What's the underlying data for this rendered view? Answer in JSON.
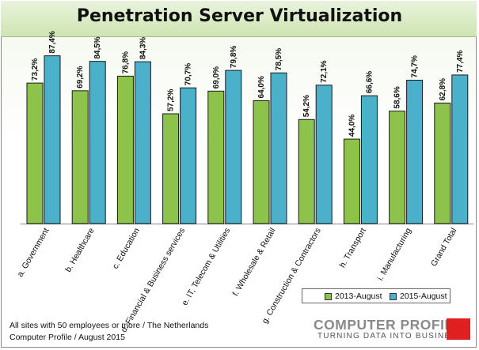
{
  "chart_data": {
    "type": "bar",
    "title": "Penetration Server Virtualization",
    "categories": [
      "a. Government",
      "b. Healthcare",
      "c. Education",
      "d. Financial & Business services",
      "e. IT, Telecom & Utilities",
      "f. Wholesale & Retail",
      "g. Construction & Contractors",
      "h. Transport",
      "i. Manufacturing",
      "Grand Total"
    ],
    "series": [
      {
        "name": "2013-August",
        "values": [
          73.2,
          69.2,
          76.8,
          57.2,
          69.0,
          64.0,
          54.2,
          44.0,
          58.6,
          62.8
        ],
        "labels": [
          "73,2%",
          "69,2%",
          "76,8%",
          "57,2%",
          "69,0%",
          "64,0%",
          "54,2%",
          "44,0%",
          "58,6%",
          "62,8%"
        ],
        "color": "#8dc34a"
      },
      {
        "name": "2015-August",
        "values": [
          87.4,
          84.5,
          84.3,
          70.7,
          79.8,
          78.5,
          72.1,
          66.6,
          74.7,
          77.4
        ],
        "labels": [
          "87,4%",
          "84,5%",
          "84,3%",
          "70,7%",
          "79,8%",
          "78,5%",
          "72,1%",
          "66,6%",
          "74,7%",
          "77,4%"
        ],
        "color": "#4bb0c9"
      }
    ],
    "ylim": [
      0,
      100
    ],
    "grid": false,
    "legend_position": "bottom-right"
  },
  "footnote": {
    "line1": "All sites with 50 employees or more / The Netherlands",
    "line2": "Computer Profile / August 2015"
  },
  "logo": {
    "name": "COMPUTER PROFILE",
    "tagline": "TURNING DATA INTO BUSINESS",
    "accent": "#e02020"
  }
}
